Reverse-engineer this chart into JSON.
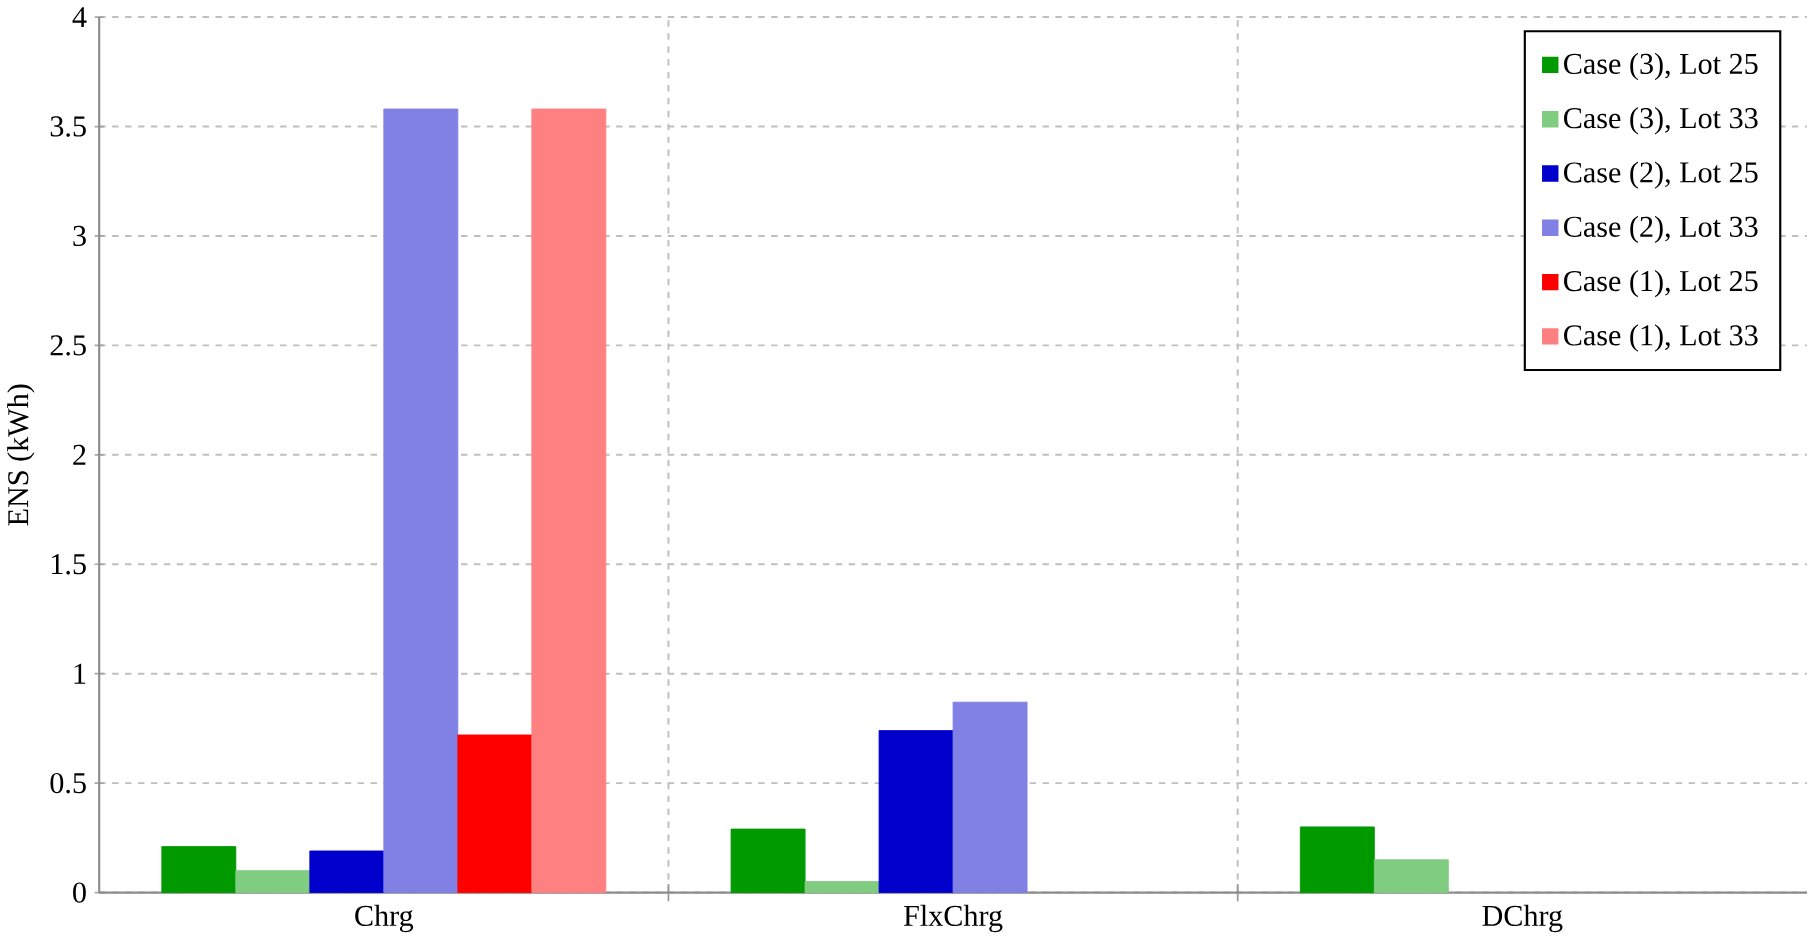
{
  "chart_data": {
    "type": "bar",
    "ylabel": "ENS (kWh)",
    "categories": [
      "Chrg",
      "FlxChrg",
      "DChrg"
    ],
    "series": [
      {
        "name": "Case (3), Lot 25",
        "color": "#009900",
        "values": [
          0.21,
          0.29,
          0.3
        ]
      },
      {
        "name": "Case (3), Lot 33",
        "color": "#80cc80",
        "values": [
          0.1,
          0.05,
          0.15
        ]
      },
      {
        "name": "Case (2), Lot 25",
        "color": "#0000cc",
        "values": [
          0.19,
          0.74,
          null
        ]
      },
      {
        "name": "Case (2), Lot 33",
        "color": "#8080e5",
        "values": [
          3.58,
          0.87,
          null
        ]
      },
      {
        "name": "Case (1), Lot 25",
        "color": "#ff0000",
        "values": [
          0.72,
          null,
          null
        ]
      },
      {
        "name": "Case (1), Lot 33",
        "color": "#ff8080",
        "values": [
          3.58,
          null,
          null
        ]
      }
    ],
    "ylim": [
      0,
      4
    ],
    "yticks": [
      0,
      0.5,
      1,
      1.5,
      2,
      2.5,
      3,
      3.5,
      4
    ],
    "grid": true,
    "legend": "top right"
  }
}
